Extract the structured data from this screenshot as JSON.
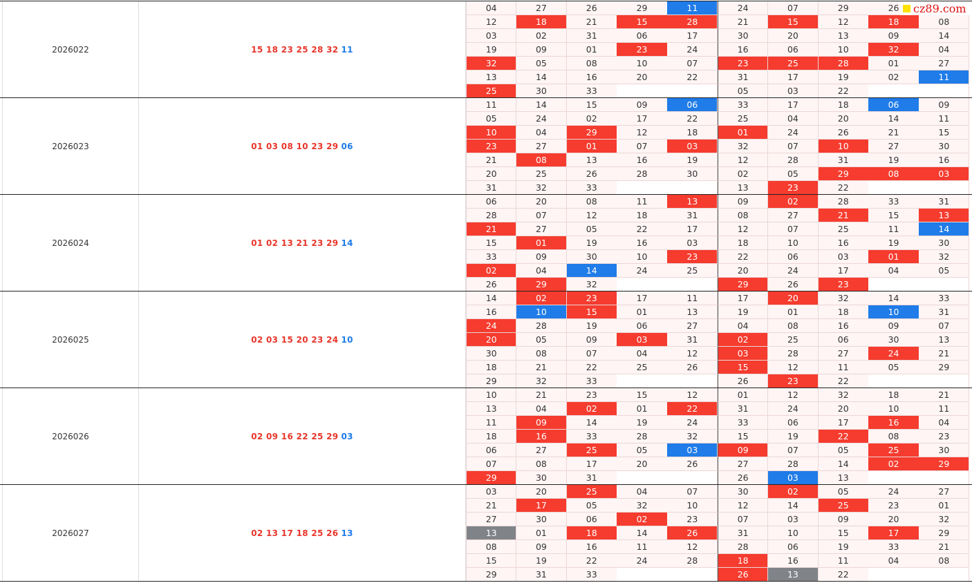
{
  "watermark": "cz89.com",
  "draws": [
    {
      "issue": "2026022",
      "red": "15 18 23 25 28 32",
      "blue": "11",
      "rows": [
        {
          "cells": [
            "04",
            "27",
            "26",
            "29",
            "11",
            "24",
            "07",
            "29",
            "26",
            null
          ],
          "hl": "....b....."
        },
        {
          "cells": [
            "12",
            "18",
            "21",
            "15",
            "28",
            "21",
            "15",
            "12",
            "18",
            "08"
          ],
          "hl": ".r.rr.r.r."
        },
        {
          "cells": [
            "03",
            "02",
            "31",
            "06",
            "17",
            "30",
            "20",
            "13",
            "09",
            "14"
          ],
          "hl": ".........."
        },
        {
          "cells": [
            "19",
            "09",
            "01",
            "23",
            "24",
            "16",
            "06",
            "10",
            "32",
            "04"
          ],
          "hl": "...r....r."
        },
        {
          "cells": [
            "32",
            "05",
            "08",
            "10",
            "07",
            "23",
            "25",
            "28",
            "01",
            "27"
          ],
          "hl": "r....rrr.."
        },
        {
          "cells": [
            "13",
            "14",
            "16",
            "20",
            "22",
            "31",
            "17",
            "19",
            "02",
            "11"
          ],
          "hl": ".........b"
        },
        {
          "cells": [
            "25",
            "30",
            "33",
            null,
            null,
            "05",
            "03",
            "22",
            null,
            null
          ],
          "hl": "r........."
        }
      ]
    },
    {
      "issue": "2026023",
      "red": "01 03 08 10 23 29",
      "blue": "06",
      "rows": [
        {
          "cells": [
            "11",
            "14",
            "15",
            "09",
            "06",
            "33",
            "17",
            "18",
            "06",
            "09"
          ],
          "hl": "....b...b."
        },
        {
          "cells": [
            "05",
            "24",
            "02",
            "17",
            "22",
            "25",
            "04",
            "20",
            "14",
            "11"
          ],
          "hl": ".........."
        },
        {
          "cells": [
            "10",
            "04",
            "29",
            "12",
            "18",
            "01",
            "24",
            "26",
            "21",
            "15"
          ],
          "hl": "r.r..r...."
        },
        {
          "cells": [
            "23",
            "27",
            "01",
            "07",
            "03",
            "32",
            "07",
            "10",
            "27",
            "30"
          ],
          "hl": "r.r.r..r.."
        },
        {
          "cells": [
            "21",
            "08",
            "13",
            "16",
            "19",
            "12",
            "28",
            "31",
            "19",
            "16"
          ],
          "hl": ".r........"
        },
        {
          "cells": [
            "20",
            "25",
            "26",
            "28",
            "30",
            "02",
            "05",
            "29",
            "08",
            "03"
          ],
          "hl": ".......rrr"
        },
        {
          "cells": [
            "31",
            "32",
            "33",
            null,
            null,
            "13",
            "23",
            "22",
            null,
            null
          ],
          "hl": "......r..."
        }
      ]
    },
    {
      "issue": "2026024",
      "red": "01 02 13 21 23 29",
      "blue": "14",
      "rows": [
        {
          "cells": [
            "06",
            "20",
            "08",
            "11",
            "13",
            "09",
            "02",
            "28",
            "33",
            "31"
          ],
          "hl": "....r.r..."
        },
        {
          "cells": [
            "28",
            "07",
            "12",
            "18",
            "31",
            "08",
            "27",
            "21",
            "15",
            "13"
          ],
          "hl": ".......r.r"
        },
        {
          "cells": [
            "21",
            "27",
            "05",
            "22",
            "17",
            "12",
            "07",
            "25",
            "11",
            "14"
          ],
          "hl": "r........b"
        },
        {
          "cells": [
            "15",
            "01",
            "19",
            "16",
            "03",
            "18",
            "10",
            "16",
            "19",
            "30"
          ],
          "hl": ".r........"
        },
        {
          "cells": [
            "33",
            "09",
            "30",
            "10",
            "23",
            "22",
            "06",
            "03",
            "01",
            "32"
          ],
          "hl": "....r...r."
        },
        {
          "cells": [
            "02",
            "04",
            "14",
            "24",
            "25",
            "20",
            "24",
            "17",
            "04",
            "05"
          ],
          "hl": "r.b......."
        },
        {
          "cells": [
            "26",
            "29",
            "32",
            null,
            null,
            "29",
            "26",
            "23",
            null,
            null
          ],
          "hl": ".r...r.r.."
        }
      ]
    },
    {
      "issue": "2026025",
      "red": "02 03 15 20 23 24",
      "blue": "10",
      "rows": [
        {
          "cells": [
            "14",
            "02",
            "23",
            "17",
            "11",
            "17",
            "20",
            "32",
            "14",
            "33"
          ],
          "hl": ".rr...r..."
        },
        {
          "cells": [
            "16",
            "10",
            "15",
            "01",
            "13",
            "19",
            "01",
            "18",
            "10",
            "31"
          ],
          "hl": ".br.....b."
        },
        {
          "cells": [
            "24",
            "28",
            "19",
            "06",
            "27",
            "04",
            "08",
            "16",
            "09",
            "07"
          ],
          "hl": "r........."
        },
        {
          "cells": [
            "20",
            "05",
            "09",
            "03",
            "31",
            "02",
            "25",
            "06",
            "30",
            "13"
          ],
          "hl": "r..r.r...."
        },
        {
          "cells": [
            "30",
            "08",
            "07",
            "04",
            "12",
            "03",
            "28",
            "27",
            "24",
            "21"
          ],
          "hl": ".....r..r."
        },
        {
          "cells": [
            "18",
            "21",
            "22",
            "25",
            "26",
            "15",
            "12",
            "11",
            "05",
            "29"
          ],
          "hl": ".....r...."
        },
        {
          "cells": [
            "29",
            "32",
            "33",
            null,
            null,
            "26",
            "23",
            "22",
            null,
            null
          ],
          "hl": "......r..."
        }
      ]
    },
    {
      "issue": "2026026",
      "red": "02 09 16 22 25 29",
      "blue": "03",
      "rows": [
        {
          "cells": [
            "10",
            "21",
            "23",
            "15",
            "12",
            "01",
            "12",
            "32",
            "18",
            "21"
          ],
          "hl": ".........."
        },
        {
          "cells": [
            "13",
            "04",
            "02",
            "01",
            "22",
            "31",
            "24",
            "20",
            "10",
            "11"
          ],
          "hl": "..r.r....."
        },
        {
          "cells": [
            "11",
            "09",
            "14",
            "19",
            "24",
            "33",
            "06",
            "17",
            "16",
            "04"
          ],
          "hl": ".r......r."
        },
        {
          "cells": [
            "18",
            "16",
            "33",
            "28",
            "32",
            "15",
            "19",
            "22",
            "08",
            "23"
          ],
          "hl": ".r.....r.."
        },
        {
          "cells": [
            "06",
            "27",
            "25",
            "05",
            "03",
            "09",
            "07",
            "05",
            "25",
            "30"
          ],
          "hl": "..r.br..r."
        },
        {
          "cells": [
            "07",
            "08",
            "17",
            "20",
            "26",
            "27",
            "28",
            "14",
            "02",
            "29"
          ],
          "hl": "........rr"
        },
        {
          "cells": [
            "29",
            "30",
            "31",
            null,
            null,
            "26",
            "03",
            "13",
            null,
            null
          ],
          "hl": "r.....b..."
        }
      ]
    },
    {
      "issue": "2026027",
      "red": "02 13 17 18 25 26",
      "blue": "13",
      "rows": [
        {
          "cells": [
            "03",
            "20",
            "25",
            "04",
            "07",
            "30",
            "02",
            "05",
            "24",
            "27"
          ],
          "hl": "..r...r..."
        },
        {
          "cells": [
            "21",
            "17",
            "05",
            "32",
            "10",
            "12",
            "14",
            "25",
            "23",
            "01"
          ],
          "hl": ".r.....r.."
        },
        {
          "cells": [
            "27",
            "30",
            "06",
            "02",
            "23",
            "07",
            "03",
            "09",
            "20",
            "32"
          ],
          "hl": "...r......"
        },
        {
          "cells": [
            "13",
            "01",
            "18",
            "14",
            "26",
            "31",
            "10",
            "15",
            "17",
            "29"
          ],
          "hl": "g.r.r...r."
        },
        {
          "cells": [
            "08",
            "09",
            "16",
            "11",
            "12",
            "28",
            "06",
            "19",
            "33",
            "21"
          ],
          "hl": ".........."
        },
        {
          "cells": [
            "15",
            "19",
            "22",
            "24",
            "28",
            "18",
            "16",
            "11",
            "04",
            "08"
          ],
          "hl": ".....r...."
        },
        {
          "cells": [
            "29",
            "31",
            "33",
            null,
            null,
            "26",
            "13",
            "22",
            null,
            null
          ],
          "hl": ".....rg..."
        }
      ]
    }
  ]
}
